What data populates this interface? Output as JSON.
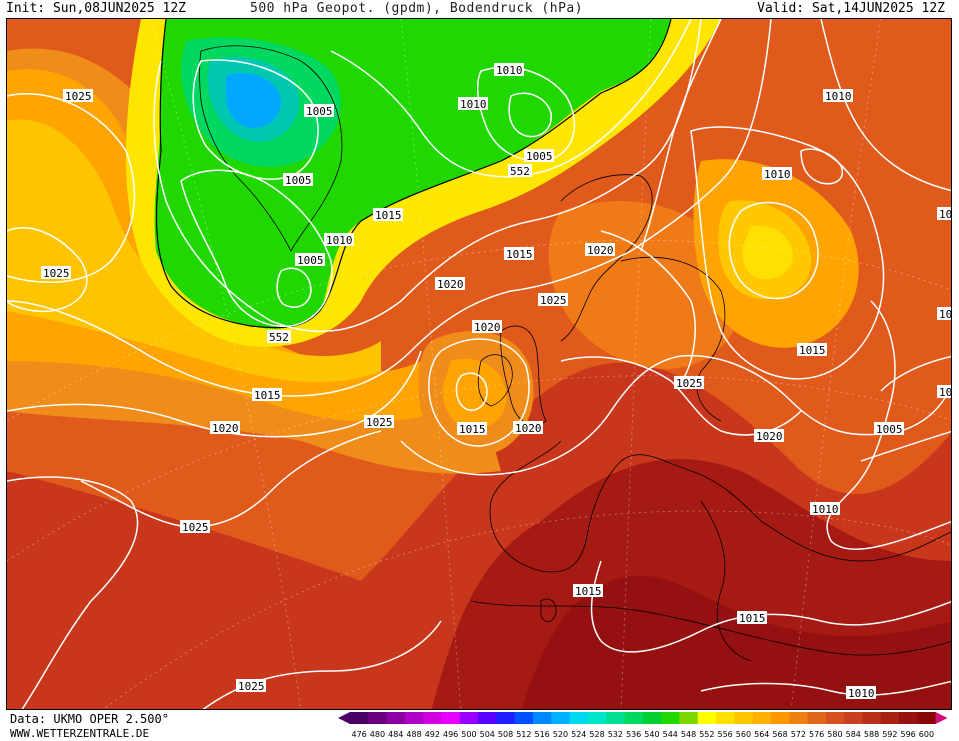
{
  "header": {
    "init": "Init: Sun,08JUN2025 12Z",
    "title": "500 hPa Geopot. (gpdm), Bodendruck (hPa)",
    "valid": "Valid: Sat,14JUN2025 12Z"
  },
  "footer": {
    "data_source": "Data: UKMO OPER 2.500°",
    "website": "WWW.WETTERZENTRALE.DE"
  },
  "legend": {
    "values": [
      "476",
      "480",
      "484",
      "488",
      "492",
      "496",
      "500",
      "504",
      "508",
      "512",
      "516",
      "520",
      "524",
      "528",
      "532",
      "536",
      "540",
      "544",
      "548",
      "552",
      "556",
      "560",
      "564",
      "568",
      "572",
      "576",
      "580",
      "584",
      "588",
      "592",
      "596",
      "600"
    ],
    "colors": [
      "#4b0066",
      "#6a0080",
      "#8c00a3",
      "#b000c8",
      "#d000e0",
      "#e600ff",
      "#9a00ff",
      "#5a00ff",
      "#1f1fff",
      "#0050ff",
      "#0088ff",
      "#00b0ff",
      "#00d8f0",
      "#00e6c8",
      "#00e090",
      "#00d860",
      "#00d030",
      "#20d800",
      "#7ad800",
      "#ffff00",
      "#ffe000",
      "#ffc800",
      "#ffb000",
      "#ff9800",
      "#f08010",
      "#e06818",
      "#d85020",
      "#c84020",
      "#b83018",
      "#a82010",
      "#981010",
      "#880808"
    ]
  },
  "isobar_labels": [
    {
      "text": "1025"
    },
    {
      "text": "1025"
    },
    {
      "text": "1005"
    },
    {
      "text": "1005"
    },
    {
      "text": "1010"
    },
    {
      "text": "1005"
    },
    {
      "text": "1010"
    },
    {
      "text": "1010"
    },
    {
      "text": "1005"
    },
    {
      "text": "552"
    },
    {
      "text": "1015"
    },
    {
      "text": "1015"
    },
    {
      "text": "1020"
    },
    {
      "text": "1020"
    },
    {
      "text": "552"
    },
    {
      "text": "1015"
    },
    {
      "text": "1020"
    },
    {
      "text": "1025"
    },
    {
      "text": "1020"
    },
    {
      "text": "1015"
    },
    {
      "text": "1020"
    },
    {
      "text": "1025"
    },
    {
      "text": "1025"
    },
    {
      "text": "1010"
    },
    {
      "text": "1010"
    },
    {
      "text": "1015"
    },
    {
      "text": "1025"
    },
    {
      "text": "1020"
    },
    {
      "text": "1005"
    },
    {
      "text": "1010"
    },
    {
      "text": "1015"
    },
    {
      "text": "1015"
    },
    {
      "text": "1010"
    },
    {
      "text": "1025"
    },
    {
      "text": "10"
    },
    {
      "text": "10"
    },
    {
      "text": "10"
    }
  ]
}
